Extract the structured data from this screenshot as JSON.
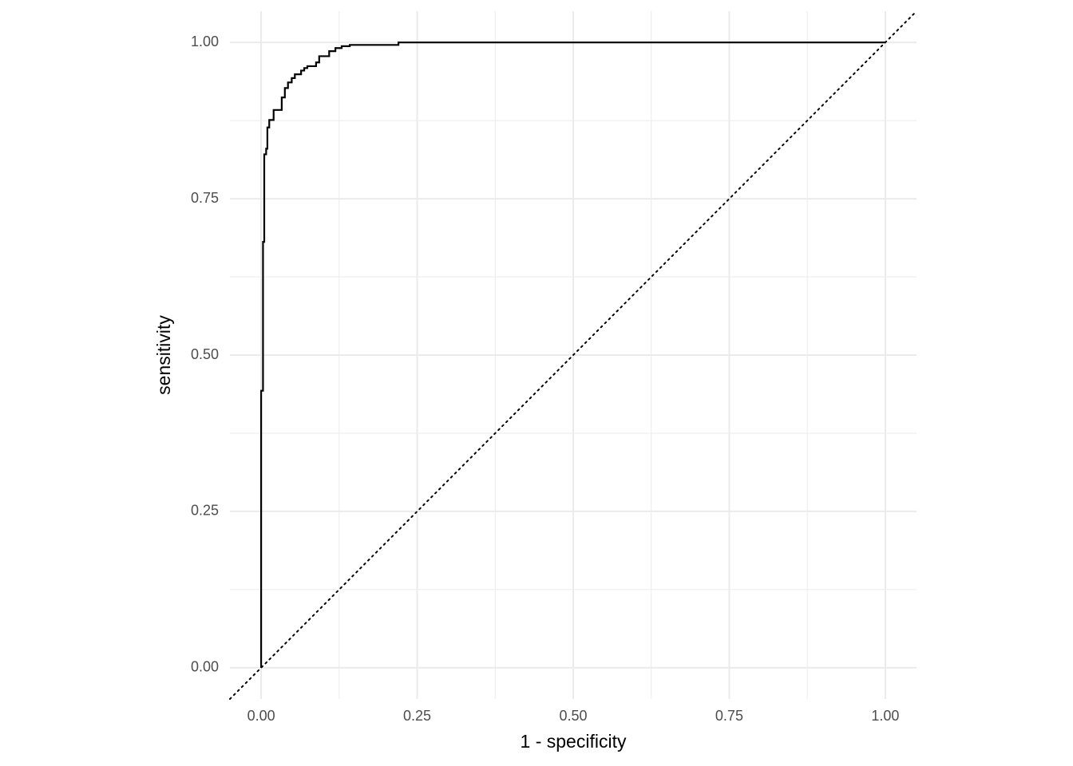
{
  "chart_data": {
    "type": "line",
    "x_label": "1 - specificity",
    "y_label": "sensitivity",
    "color": "#000000",
    "x": [
      0,
      0,
      0.003,
      0.003,
      0.005,
      0.005,
      0.008,
      0.008,
      0.01,
      0.01,
      0.013,
      0.013,
      0.02,
      0.02,
      0.033,
      0.033,
      0.038,
      0.038,
      0.043,
      0.043,
      0.049,
      0.049,
      0.054,
      0.054,
      0.064,
      0.064,
      0.069,
      0.069,
      0.074,
      0.074,
      0.088,
      0.088,
      0.093,
      0.093,
      0.109,
      0.109,
      0.119,
      0.119,
      0.129,
      0.129,
      0.142,
      0.142,
      0.22,
      0.22,
      1
    ],
    "values": [
      0,
      0.443,
      0.443,
      0.681,
      0.681,
      0.821,
      0.821,
      0.83,
      0.83,
      0.864,
      0.864,
      0.876,
      0.876,
      0.892,
      0.892,
      0.912,
      0.912,
      0.927,
      0.927,
      0.936,
      0.936,
      0.943,
      0.943,
      0.949,
      0.949,
      0.955,
      0.955,
      0.959,
      0.959,
      0.962,
      0.962,
      0.968,
      0.968,
      0.978,
      0.978,
      0.986,
      0.986,
      0.991,
      0.991,
      0.994,
      0.994,
      0.996,
      0.996,
      1,
      1
    ],
    "reference_line": {
      "slope": 1,
      "intercept": 0,
      "style": "dotted"
    },
    "xlim": [
      -0.05,
      1.05
    ],
    "ylim": [
      -0.05,
      1.05
    ],
    "xticks": [
      {
        "value": 0,
        "label": "0.00"
      },
      {
        "value": 0.25,
        "label": "0.25"
      },
      {
        "value": 0.5,
        "label": "0.50"
      },
      {
        "value": 0.75,
        "label": "0.75"
      },
      {
        "value": 1,
        "label": "1.00"
      }
    ],
    "yticks": [
      {
        "value": 0,
        "label": "0.00"
      },
      {
        "value": 0.25,
        "label": "0.25"
      },
      {
        "value": 0.5,
        "label": "0.50"
      },
      {
        "value": 0.75,
        "label": "0.75"
      },
      {
        "value": 1,
        "label": "1.00"
      }
    ],
    "xticks_minor": [
      0.125,
      0.375,
      0.625,
      0.875
    ],
    "yticks_minor": [
      0.125,
      0.375,
      0.625,
      0.875
    ],
    "grid": true
  }
}
